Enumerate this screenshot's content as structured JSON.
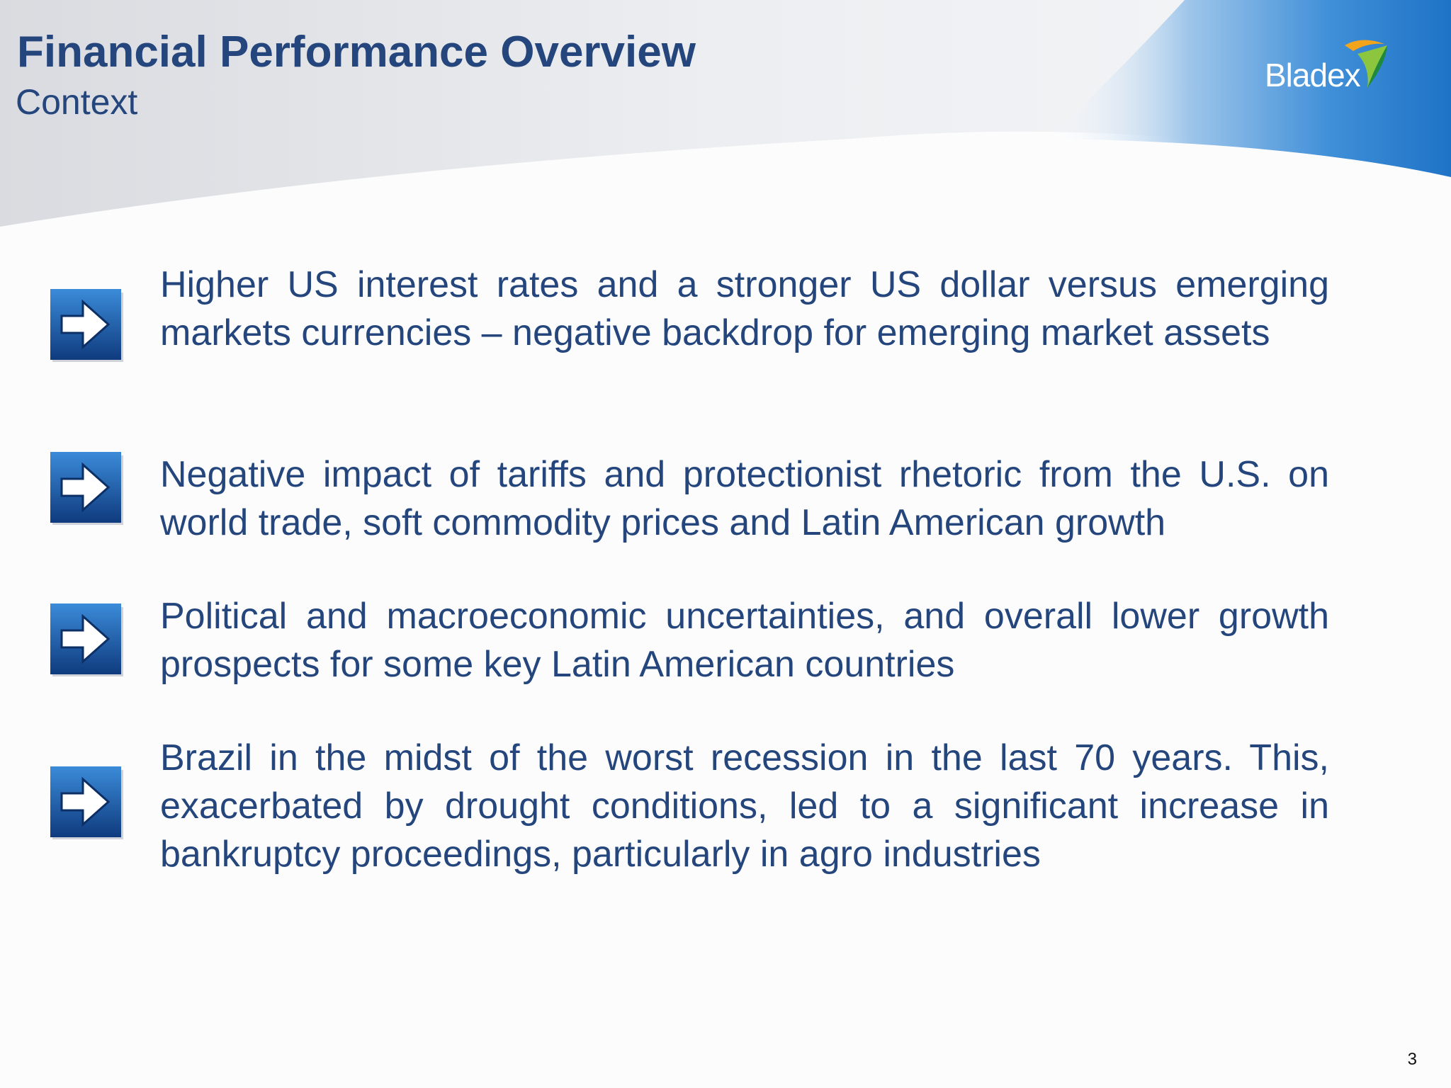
{
  "header": {
    "title": "Financial Performance Overview",
    "subtitle": "Context"
  },
  "logo": {
    "text": "Bladex",
    "mark_colors": [
      "#f2a51a",
      "#8cc63f",
      "#1f8a3c"
    ]
  },
  "bullets": [
    {
      "icon": "right-arrow-icon",
      "text": "Higher US interest rates and a stronger US dollar versus emerging markets currencies – negative backdrop for emerging market assets"
    },
    {
      "icon": "right-arrow-icon",
      "text": "Negative impact of tariffs and protectionist rhetoric from the U.S. on world trade, soft commodity prices and Latin American growth"
    },
    {
      "icon": "right-arrow-icon",
      "text": "Political and macroeconomic uncertainties, and overall lower growth prospects for some key Latin American countries"
    },
    {
      "icon": "right-arrow-icon",
      "text": "Brazil in the midst of the worst recession in the last 70 years. This, exacerbated by drought conditions, led to a significant increase in bankruptcy proceedings, particularly in agro industries"
    }
  ],
  "footer": {
    "page_number": "3"
  },
  "colors": {
    "text": "#24467c",
    "header_blue": "#1f73c6",
    "icon_blue": "#0f3b7e",
    "icon_light": "#3b8bd9",
    "background": "#fcfcfd"
  }
}
